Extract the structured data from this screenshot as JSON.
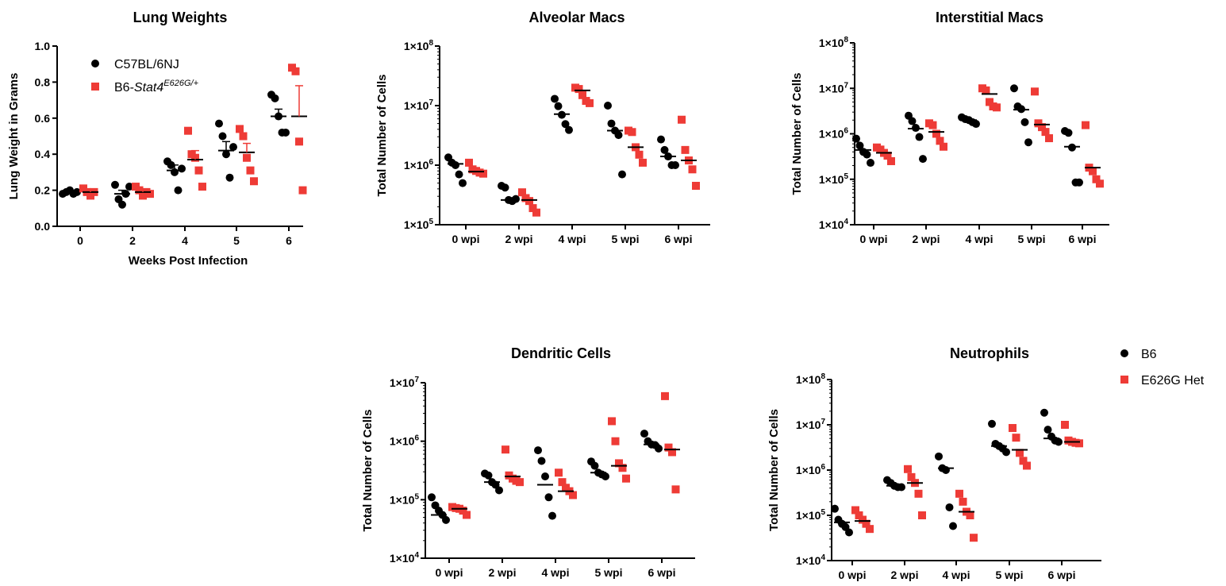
{
  "colors": {
    "b6": "#000000",
    "het": "#ee3b36"
  },
  "legend_lung": {
    "b6": "C57BL/6NJ",
    "het_prefix": "B6-",
    "het_gene": "Stat4",
    "het_sup": "E626G/+"
  },
  "legend_main": {
    "b6": "B6",
    "het": "E626G Het"
  },
  "chart_data": [
    {
      "id": "lung",
      "type": "scatter",
      "title": "Lung Weights",
      "xlabel": "Weeks Post Infection",
      "ylabel": "Lung Weight in Grams",
      "ylim": [
        0,
        1.0
      ],
      "yticks": [
        "0.0",
        "0.2",
        "0.4",
        "0.6",
        "0.8",
        "1.0"
      ],
      "categories": [
        "0",
        "2",
        "4",
        "5",
        "6"
      ],
      "series": [
        {
          "key": "b6",
          "points": [
            [
              0.18,
              0.19,
              0.2,
              0.18,
              0.19
            ],
            [
              0.23,
              0.15,
              0.12,
              0.18,
              0.22
            ],
            [
              0.36,
              0.34,
              0.3,
              0.2,
              0.32
            ],
            [
              0.57,
              0.5,
              0.4,
              0.27,
              0.44
            ],
            [
              0.73,
              0.71,
              0.61,
              0.52,
              0.52
            ]
          ],
          "means": [
            0.19,
            0.18,
            0.31,
            0.42,
            0.61
          ],
          "sem": [
            0.01,
            0.02,
            0.03,
            0.05,
            0.04
          ]
        },
        {
          "key": "het",
          "points": [
            [
              0.21,
              0.19,
              0.17,
              0.19
            ],
            [
              0.22,
              0.2,
              0.17,
              0.19,
              0.18
            ],
            [
              0.53,
              0.4,
              0.38,
              0.31,
              0.22
            ],
            [
              0.54,
              0.5,
              0.38,
              0.31,
              0.25
            ],
            [
              0.88,
              0.86,
              0.47,
              0.2
            ]
          ],
          "means": [
            0.19,
            0.19,
            0.37,
            0.41,
            0.61
          ],
          "sem": [
            0.01,
            0.01,
            0.05,
            0.05,
            0.17
          ]
        }
      ]
    },
    {
      "id": "alv",
      "type": "scatter",
      "title": "Alveolar Macs",
      "ylabel": "Total Number of Cells",
      "yscale": "log",
      "ylim": [
        100000,
        100000000
      ],
      "yticks": [
        5,
        6,
        7,
        8
      ],
      "categories": [
        "0 wpi",
        "2 wpi",
        "4 wpi",
        "5 wpi",
        "6 wpi"
      ],
      "series": [
        {
          "key": "b6",
          "points": [
            [
              1350000,
              1100000,
              1000000,
              700000,
              500000
            ],
            [
              450000,
              420000,
              260000,
              250000,
              270000
            ],
            [
              13000000,
              9800000,
              7000000,
              4900000,
              3900000
            ],
            [
              10000000,
              5000000,
              3800000,
              3200000,
              700000
            ],
            [
              2700000,
              1800000,
              1400000,
              1000000,
              1000000
            ]
          ],
          "median": [
            1050000,
            260000,
            7200000,
            3800000,
            1400000
          ]
        },
        {
          "key": "het",
          "points": [
            [
              1100000,
              850000,
              800000,
              750000,
              720000
            ],
            [
              350000,
              280000,
              250000,
              190000,
              160000
            ],
            [
              20000000,
              19000000,
              15000000,
              12000000,
              11000000
            ],
            [
              3800000,
              3600000,
              2000000,
              1500000,
              1100000
            ],
            [
              5800000,
              1800000,
              1200000,
              850000,
              450000
            ]
          ],
          "median": [
            780000,
            260000,
            18000000,
            2000000,
            1200000
          ]
        }
      ]
    },
    {
      "id": "int",
      "type": "scatter",
      "title": "Interstitial Macs",
      "ylabel": "Total Number of Cells",
      "yscale": "log",
      "ylim": [
        10000,
        100000000
      ],
      "yticks": [
        4,
        5,
        6,
        7,
        8
      ],
      "categories": [
        "0 wpi",
        "2 wpi",
        "4 wpi",
        "5 wpi",
        "6 wpi"
      ],
      "series": [
        {
          "key": "b6",
          "points": [
            [
              780000,
              550000,
              400000,
              350000,
              230000
            ],
            [
              2500000,
              1900000,
              1350000,
              850000,
              280000
            ],
            [
              2300000,
              2100000,
              2000000,
              1800000,
              1650000
            ],
            [
              10000000,
              4000000,
              3500000,
              1800000,
              650000
            ],
            [
              1150000,
              1050000,
              500000,
              85000,
              85000
            ]
          ],
          "median": [
            440000,
            1300000,
            2000000,
            3400000,
            520000
          ]
        },
        {
          "key": "het",
          "points": [
            [
              500000,
              450000,
              380000,
              330000,
              250000
            ],
            [
              1700000,
              1550000,
              1000000,
              700000,
              520000
            ],
            [
              10000000,
              9000000,
              5000000,
              4000000,
              3800000
            ],
            [
              8500000,
              1700000,
              1400000,
              1100000,
              800000
            ],
            [
              1550000,
              180000,
              150000,
              100000,
              80000
            ]
          ],
          "median": [
            380000,
            1100000,
            7500000,
            1600000,
            180000
          ]
        }
      ]
    },
    {
      "id": "den",
      "type": "scatter",
      "title": "Dendritic Cells",
      "ylabel": "Total Number of Cells",
      "yscale": "log",
      "ylim": [
        10000,
        10000000
      ],
      "yticks": [
        4,
        5,
        6,
        7
      ],
      "categories": [
        "0 wpi",
        "2 wpi",
        "4 wpi",
        "5 wpi",
        "6 wpi"
      ],
      "series": [
        {
          "key": "b6",
          "points": [
            [
              110000,
              80000,
              65000,
              55000,
              45000
            ],
            [
              280000,
              260000,
              200000,
              180000,
              145000
            ],
            [
              700000,
              460000,
              250000,
              110000,
              53000
            ],
            [
              450000,
              380000,
              290000,
              270000,
              250000
            ],
            [
              1350000,
              1000000,
              880000,
              860000,
              750000
            ]
          ],
          "median": [
            55000,
            200000,
            180000,
            290000,
            880000
          ]
        },
        {
          "key": "het",
          "points": [
            [
              75000,
              72000,
              70000,
              65000,
              55000
            ],
            [
              720000,
              260000,
              230000,
              210000,
              200000
            ],
            [
              290000,
              200000,
              160000,
              140000,
              120000
            ],
            [
              2200000,
              1000000,
              420000,
              350000,
              230000
            ],
            [
              5900000,
              780000,
              650000,
              150000
            ]
          ],
          "median": [
            70000,
            250000,
            140000,
            380000,
            720000
          ]
        }
      ]
    },
    {
      "id": "neu",
      "type": "scatter",
      "title": "Neutrophils",
      "ylabel": "Total Number of Cells",
      "yscale": "log",
      "ylim": [
        10000,
        100000000
      ],
      "yticks": [
        4,
        5,
        6,
        7,
        8
      ],
      "categories": [
        "0 wpi",
        "2 wpi",
        "4 wpi",
        "5 wpi",
        "6 wpi"
      ],
      "series": [
        {
          "key": "b6",
          "points": [
            [
              140000,
              80000,
              65000,
              55000,
              42000
            ],
            [
              600000,
              520000,
              450000,
              420000,
              420000
            ],
            [
              2000000,
              1100000,
              1000000,
              150000,
              58000
            ],
            [
              10500000,
              3800000,
              3400000,
              3000000,
              2500000
            ],
            [
              18500000,
              7800000,
              5500000,
              4500000,
              4200000
            ]
          ],
          "median": [
            70000,
            450000,
            1100000,
            3400000,
            5000000
          ]
        },
        {
          "key": "het",
          "points": [
            [
              130000,
              100000,
              80000,
              65000,
              50000
            ],
            [
              1050000,
              700000,
              520000,
              300000,
              100000
            ],
            [
              300000,
              200000,
              120000,
              100000,
              32000
            ],
            [
              8500000,
              5200000,
              2400000,
              1600000,
              1250000
            ],
            [
              10000000,
              4500000,
              4200000,
              4000000,
              3900000
            ]
          ],
          "median": [
            75000,
            520000,
            120000,
            2800000,
            4200000
          ]
        }
      ]
    }
  ]
}
